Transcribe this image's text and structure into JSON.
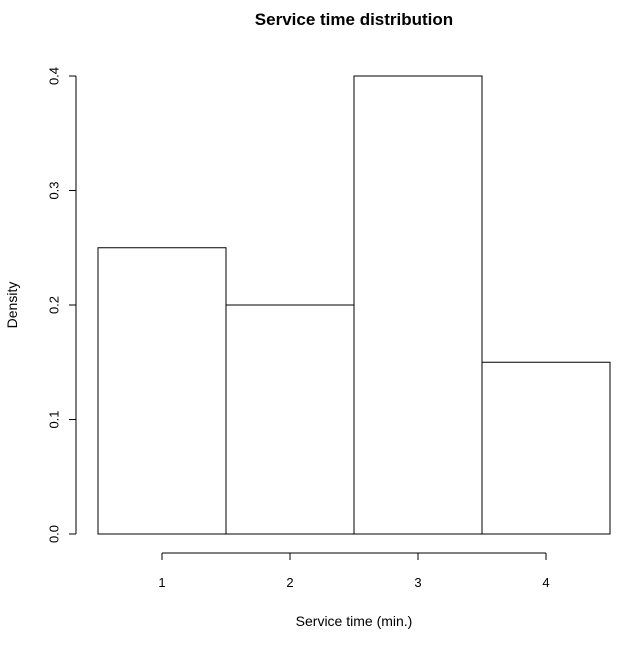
{
  "chart_data": {
    "type": "bar",
    "title": "Service time distribution",
    "xlabel": "Service time (min.)",
    "ylabel": "Density",
    "categories": [
      "1",
      "2",
      "3",
      "4"
    ],
    "values": [
      0.25,
      0.2,
      0.4,
      0.15
    ],
    "x_ticks": [
      "1",
      "2",
      "3",
      "4"
    ],
    "y_ticks": [
      "0.0",
      "0.1",
      "0.2",
      "0.3",
      "0.4"
    ],
    "ylim": [
      0,
      0.4
    ],
    "grid": false,
    "legend": "none",
    "bar_fill": "#ffffff",
    "bar_stroke": "#000000"
  }
}
